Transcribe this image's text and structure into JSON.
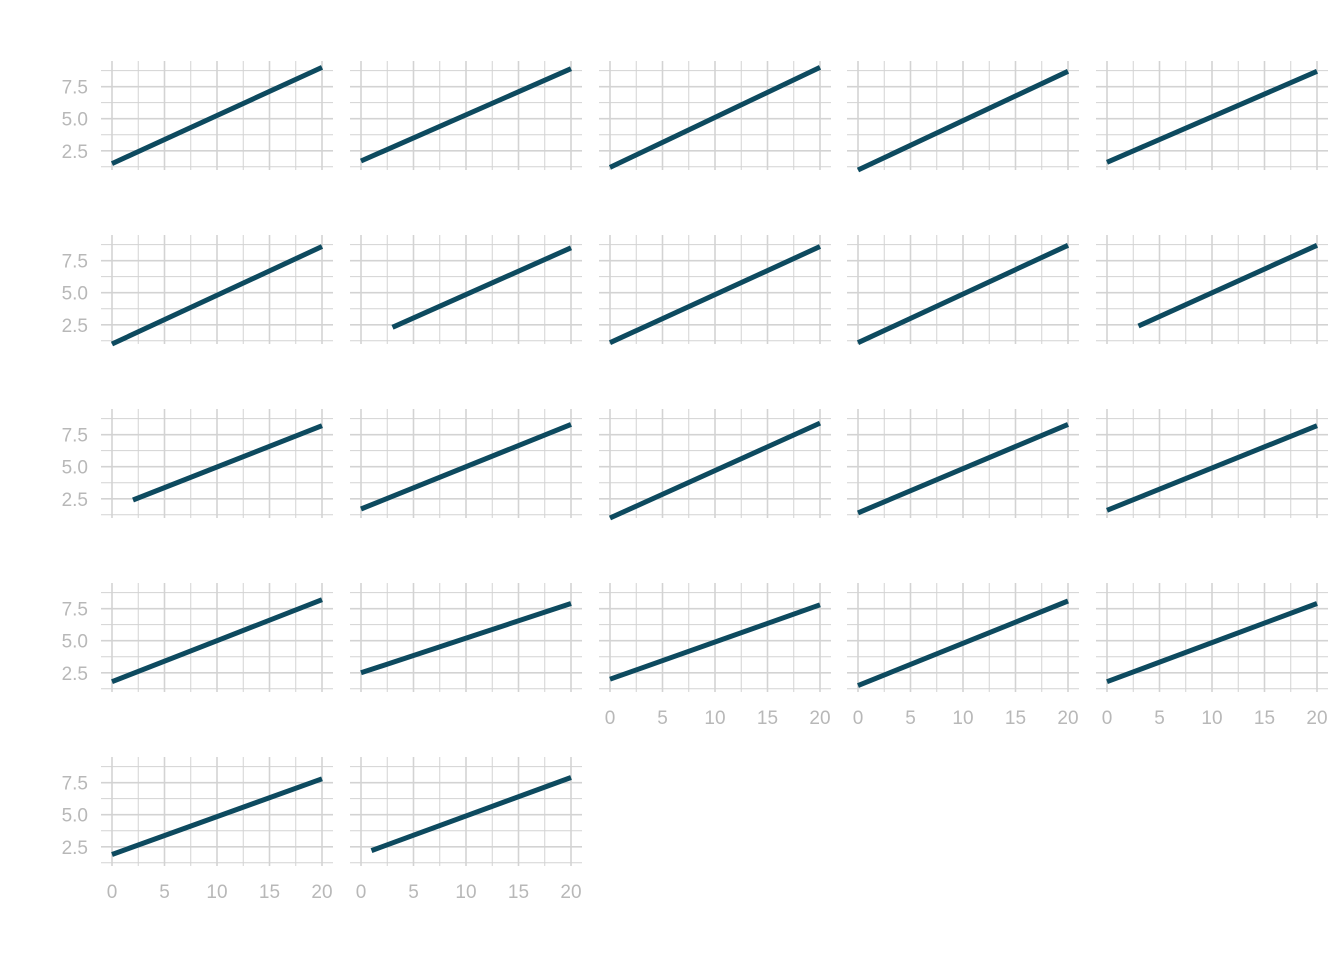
{
  "chart_data": {
    "type": "line",
    "layout": "small-multiples",
    "grid": true,
    "line_color": "#0d4a5f",
    "grid_color": "#d3d3d3",
    "tick_color": "#b8b8b8",
    "xlim": [
      0,
      20
    ],
    "ylim": [
      1,
      9.5
    ],
    "x_ticks": [
      0,
      5,
      10,
      15,
      20
    ],
    "x_tick_labels": [
      "0",
      "5",
      "10",
      "15",
      "20"
    ],
    "y_ticks": [
      2.5,
      5.0,
      7.5
    ],
    "y_tick_labels": [
      "2.5",
      "5.0",
      "7.5"
    ],
    "panels": [
      {
        "x": [
          0,
          20
        ],
        "y": [
          1.5,
          9.0
        ]
      },
      {
        "x": [
          0,
          20
        ],
        "y": [
          1.7,
          8.9
        ]
      },
      {
        "x": [
          0,
          20
        ],
        "y": [
          1.2,
          9.0
        ]
      },
      {
        "x": [
          0,
          20
        ],
        "y": [
          1.0,
          8.7
        ]
      },
      {
        "x": [
          0,
          20
        ],
        "y": [
          1.6,
          8.7
        ]
      },
      {
        "x": [
          0,
          20
        ],
        "y": [
          1.0,
          8.6
        ]
      },
      {
        "x": [
          3,
          20
        ],
        "y": [
          2.3,
          8.5
        ]
      },
      {
        "x": [
          0,
          20
        ],
        "y": [
          1.1,
          8.6
        ]
      },
      {
        "x": [
          0,
          20
        ],
        "y": [
          1.1,
          8.7
        ]
      },
      {
        "x": [
          3,
          20
        ],
        "y": [
          2.4,
          8.7
        ]
      },
      {
        "x": [
          2,
          20
        ],
        "y": [
          2.4,
          8.2
        ]
      },
      {
        "x": [
          0,
          20
        ],
        "y": [
          1.7,
          8.3
        ]
      },
      {
        "x": [
          0,
          20
        ],
        "y": [
          1.0,
          8.4
        ]
      },
      {
        "x": [
          0,
          20
        ],
        "y": [
          1.4,
          8.3
        ]
      },
      {
        "x": [
          0,
          20
        ],
        "y": [
          1.6,
          8.2
        ]
      },
      {
        "x": [
          0,
          20
        ],
        "y": [
          1.8,
          8.2
        ]
      },
      {
        "x": [
          0,
          20
        ],
        "y": [
          2.5,
          7.9
        ]
      },
      {
        "x": [
          0,
          20
        ],
        "y": [
          2.0,
          7.8
        ]
      },
      {
        "x": [
          0,
          20
        ],
        "y": [
          1.5,
          8.1
        ]
      },
      {
        "x": [
          0,
          20
        ],
        "y": [
          1.8,
          7.9
        ]
      },
      {
        "x": [
          0,
          20
        ],
        "y": [
          1.9,
          7.8
        ]
      },
      {
        "x": [
          1,
          20
        ],
        "y": [
          2.2,
          7.9
        ]
      }
    ]
  }
}
